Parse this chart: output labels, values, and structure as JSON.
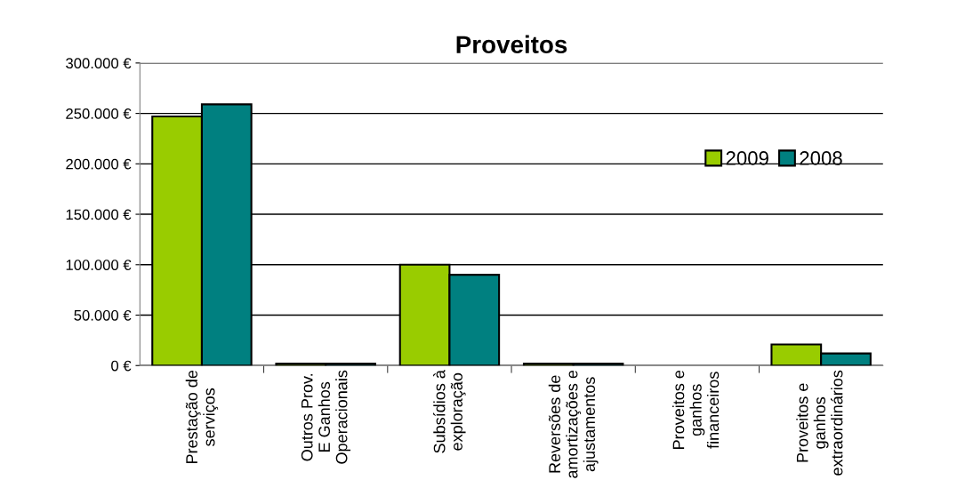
{
  "chart_data": {
    "type": "bar",
    "title": "Proveitos",
    "categories": [
      "Prestação de\nserviços",
      "Outros Prov.\nE Ganhos\nOperacionais",
      "Subsídios à\nexploração",
      "Reversões de\namortizações e\najustamentos",
      "Proveitos e\nganhos\nfinanceiros",
      "Proveitos e\nganhos\nextraordinários"
    ],
    "series": [
      {
        "name": "2009",
        "color": "#99cc00",
        "values": [
          247000,
          2000,
          100000,
          2000,
          null,
          21000
        ]
      },
      {
        "name": "2008",
        "color": "#008080",
        "values": [
          259000,
          2000,
          90000,
          2000,
          null,
          12000
        ]
      }
    ],
    "ylim": [
      0,
      300000
    ],
    "yticks": [
      {
        "value": 0,
        "label": "0 €"
      },
      {
        "value": 50000,
        "label": "50.000 €"
      },
      {
        "value": 100000,
        "label": "100.000 €"
      },
      {
        "value": 150000,
        "label": "150.000 €"
      },
      {
        "value": 200000,
        "label": "200.000 €"
      },
      {
        "value": 250000,
        "label": "250.000 €"
      },
      {
        "value": 300000,
        "label": "300.000 €"
      }
    ],
    "grid": "y",
    "legend": "right"
  }
}
